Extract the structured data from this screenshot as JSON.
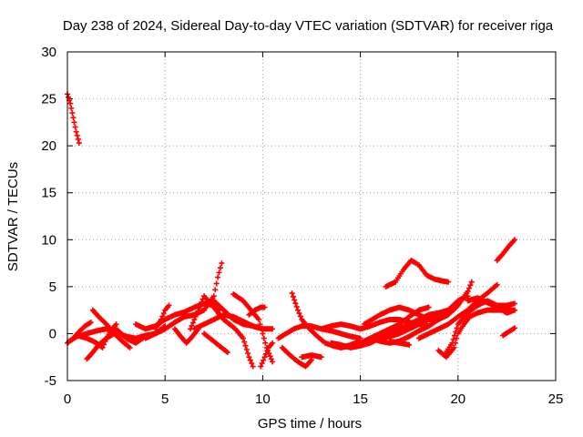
{
  "chart_data": {
    "type": "scatter",
    "title": "Day 238 of 2024, Sidereal Day-to-day VTEC variation (SDTVAR) for receiver riga",
    "xlabel": "GPS time / hours",
    "ylabel": "SDTVAR / TECUs",
    "xlim": [
      0,
      25
    ],
    "ylim": [
      -5,
      30
    ],
    "xticks": [
      0,
      5,
      10,
      15,
      20,
      25
    ],
    "yticks": [
      -5,
      0,
      5,
      10,
      15,
      20,
      25,
      30
    ],
    "grid": true,
    "marker": "+",
    "color": "#ff0000",
    "series": [
      {
        "name": "s1",
        "points": [
          [
            0.0,
            25.5
          ],
          [
            0.15,
            24.5
          ],
          [
            0.3,
            23.0
          ],
          [
            0.45,
            21.5
          ],
          [
            0.6,
            20.3
          ]
        ]
      },
      {
        "name": "s2",
        "points": [
          [
            0.0,
            -1.0
          ],
          [
            0.3,
            -0.5
          ],
          [
            0.6,
            0.2
          ],
          [
            0.9,
            0.8
          ],
          [
            1.2,
            1.2
          ]
        ]
      },
      {
        "name": "s3",
        "points": [
          [
            0.1,
            -0.8
          ],
          [
            0.5,
            -0.3
          ],
          [
            1.0,
            0.0
          ],
          [
            1.5,
            0.3
          ],
          [
            2.0,
            0.5
          ],
          [
            2.5,
            0.2
          ],
          [
            3.0,
            -0.3
          ],
          [
            3.5,
            -0.5
          ],
          [
            4.0,
            -0.2
          ],
          [
            4.5,
            0.0
          ],
          [
            5.0,
            0.5
          ]
        ]
      },
      {
        "name": "s4",
        "points": [
          [
            0.5,
            -0.2
          ],
          [
            1.0,
            -0.5
          ],
          [
            1.5,
            -1.0
          ],
          [
            1.8,
            -1.5
          ],
          [
            2.0,
            -0.5
          ],
          [
            2.3,
            0.5
          ],
          [
            2.5,
            1.0
          ]
        ]
      },
      {
        "name": "s5",
        "points": [
          [
            1.0,
            -2.7
          ],
          [
            1.3,
            -2.0
          ],
          [
            1.6,
            -1.2
          ],
          [
            2.0,
            -0.5
          ],
          [
            2.4,
            0.0
          ]
        ]
      },
      {
        "name": "s6",
        "points": [
          [
            1.3,
            2.5
          ],
          [
            1.6,
            1.8
          ],
          [
            2.0,
            1.0
          ],
          [
            2.4,
            0.0
          ],
          [
            2.8,
            -0.8
          ],
          [
            3.2,
            -1.5
          ]
        ]
      },
      {
        "name": "s7",
        "points": [
          [
            2.5,
            0.5
          ],
          [
            3.0,
            -0.5
          ],
          [
            3.5,
            -1.0
          ],
          [
            4.0,
            -0.3
          ],
          [
            4.5,
            0.0
          ],
          [
            5.0,
            0.8
          ]
        ]
      },
      {
        "name": "s8",
        "points": [
          [
            3.5,
            1.0
          ],
          [
            4.0,
            0.5
          ],
          [
            4.5,
            0.8
          ],
          [
            5.0,
            1.5
          ],
          [
            5.5,
            2.0
          ],
          [
            6.0,
            2.3
          ],
          [
            6.5,
            2.8
          ],
          [
            7.0,
            3.2
          ],
          [
            7.5,
            3.0
          ],
          [
            7.8,
            2.5
          ]
        ]
      },
      {
        "name": "s9",
        "points": [
          [
            4.5,
            0.5
          ],
          [
            4.8,
            1.5
          ],
          [
            5.0,
            2.5
          ],
          [
            5.2,
            3.0
          ]
        ]
      },
      {
        "name": "s10",
        "points": [
          [
            4.0,
            -0.5
          ],
          [
            4.5,
            0.0
          ],
          [
            5.0,
            0.5
          ],
          [
            5.5,
            1.2
          ],
          [
            6.0,
            1.8
          ],
          [
            6.5,
            2.0
          ],
          [
            7.0,
            2.5
          ],
          [
            7.5,
            4.0
          ],
          [
            7.7,
            6.0
          ],
          [
            7.9,
            7.5
          ]
        ]
      },
      {
        "name": "s11",
        "points": [
          [
            5.5,
            0.5
          ],
          [
            5.8,
            -0.3
          ],
          [
            6.1,
            -1.0
          ],
          [
            6.4,
            -0.3
          ],
          [
            6.7,
            0.5
          ]
        ]
      },
      {
        "name": "s12",
        "points": [
          [
            6.3,
            0.5
          ],
          [
            6.5,
            1.5
          ],
          [
            6.8,
            3.0
          ],
          [
            7.0,
            4.0
          ],
          [
            7.2,
            3.5
          ],
          [
            7.5,
            2.8
          ],
          [
            7.8,
            2.0
          ],
          [
            8.0,
            1.5
          ],
          [
            8.3,
            1.0
          ],
          [
            8.6,
            0.5
          ],
          [
            9.0,
            -0.5
          ],
          [
            9.3,
            -2.5
          ],
          [
            9.5,
            -3.5
          ]
        ]
      },
      {
        "name": "s13",
        "points": [
          [
            6.5,
            0.5
          ],
          [
            7.0,
            1.0
          ],
          [
            7.5,
            1.5
          ],
          [
            8.0,
            2.0
          ],
          [
            8.5,
            1.8
          ],
          [
            9.0,
            1.3
          ],
          [
            9.5,
            0.8
          ],
          [
            10.0,
            0.5
          ],
          [
            10.5,
            0.5
          ]
        ]
      },
      {
        "name": "s14",
        "points": [
          [
            7.0,
            0.0
          ],
          [
            7.3,
            -0.5
          ],
          [
            7.6,
            -1.0
          ],
          [
            7.9,
            -1.5
          ],
          [
            8.2,
            -2.0
          ]
        ]
      },
      {
        "name": "s15",
        "points": [
          [
            7.5,
            3.5
          ],
          [
            8.0,
            2.5
          ],
          [
            8.5,
            1.5
          ],
          [
            9.0,
            1.0
          ],
          [
            9.5,
            0.8
          ],
          [
            10.0,
            0.5
          ]
        ]
      },
      {
        "name": "s16",
        "points": [
          [
            8.5,
            4.2
          ],
          [
            9.0,
            3.5
          ],
          [
            9.4,
            2.5
          ],
          [
            9.8,
            1.5
          ],
          [
            10.0,
            0.0
          ],
          [
            10.2,
            -1.5
          ],
          [
            10.5,
            -3.0
          ]
        ]
      },
      {
        "name": "s17",
        "points": [
          [
            9.3,
            2.0
          ],
          [
            9.6,
            2.5
          ],
          [
            9.9,
            2.8
          ],
          [
            10.1,
            2.8
          ]
        ]
      },
      {
        "name": "s18",
        "points": [
          [
            9.9,
            -3.5
          ],
          [
            10.1,
            -2.5
          ],
          [
            10.3,
            -1.5
          ],
          [
            10.5,
            -1.0
          ]
        ]
      },
      {
        "name": "s19",
        "points": [
          [
            10.8,
            -0.5
          ],
          [
            11.2,
            0.0
          ],
          [
            11.6,
            0.5
          ],
          [
            12.0,
            0.8
          ],
          [
            12.5,
            0.8
          ],
          [
            13.0,
            0.5
          ],
          [
            13.5,
            0.3
          ],
          [
            14.0,
            0.0
          ],
          [
            14.5,
            -0.3
          ],
          [
            15.0,
            -0.5
          ]
        ]
      },
      {
        "name": "s20",
        "points": [
          [
            11.0,
            -1.5
          ],
          [
            11.4,
            -2.3
          ],
          [
            11.8,
            -3.0
          ],
          [
            12.2,
            -3.5
          ],
          [
            12.5,
            -2.8
          ]
        ]
      },
      {
        "name": "s21",
        "points": [
          [
            11.5,
            4.3
          ],
          [
            11.8,
            2.5
          ],
          [
            12.0,
            1.5
          ],
          [
            12.4,
            0.5
          ],
          [
            12.8,
            -0.3
          ],
          [
            13.2,
            -1.0
          ],
          [
            13.6,
            -1.3
          ],
          [
            14.0,
            -1.5
          ],
          [
            14.5,
            -1.2
          ],
          [
            15.0,
            -0.8
          ]
        ]
      },
      {
        "name": "s22",
        "points": [
          [
            12.0,
            -2.5
          ],
          [
            12.5,
            -2.3
          ],
          [
            13.0,
            -2.5
          ]
        ]
      },
      {
        "name": "s23",
        "points": [
          [
            13.0,
            0.5
          ],
          [
            13.5,
            0.8
          ],
          [
            14.0,
            1.0
          ],
          [
            14.5,
            0.8
          ],
          [
            15.0,
            0.5
          ],
          [
            15.5,
            0.8
          ],
          [
            16.0,
            1.2
          ],
          [
            16.5,
            1.5
          ],
          [
            17.0,
            1.5
          ],
          [
            17.5,
            1.2
          ],
          [
            18.0,
            1.0
          ],
          [
            18.5,
            0.8
          ]
        ]
      },
      {
        "name": "s24",
        "points": [
          [
            13.5,
            -1.0
          ],
          [
            14.0,
            -1.2
          ],
          [
            14.5,
            -1.5
          ],
          [
            15.0,
            -1.3
          ],
          [
            15.5,
            -1.0
          ],
          [
            16.0,
            -0.5
          ],
          [
            16.5,
            0.0
          ],
          [
            17.0,
            0.5
          ],
          [
            17.5,
            1.0
          ],
          [
            18.0,
            1.5
          ],
          [
            18.5,
            2.0
          ],
          [
            19.0,
            2.2
          ],
          [
            19.5,
            2.5
          ]
        ]
      },
      {
        "name": "s25",
        "points": [
          [
            14.0,
            -1.5
          ],
          [
            14.5,
            -1.3
          ],
          [
            15.0,
            -1.0
          ],
          [
            15.5,
            -0.5
          ],
          [
            16.0,
            0.0
          ],
          [
            16.5,
            0.5
          ],
          [
            17.0,
            1.0
          ],
          [
            17.5,
            1.8
          ],
          [
            18.0,
            2.5
          ],
          [
            18.5,
            2.8
          ]
        ]
      },
      {
        "name": "s26",
        "points": [
          [
            15.2,
            1.0
          ],
          [
            15.6,
            1.5
          ],
          [
            16.0,
            2.0
          ],
          [
            16.5,
            2.5
          ],
          [
            17.0,
            2.8
          ],
          [
            17.5,
            2.5
          ],
          [
            18.0,
            2.0
          ],
          [
            18.5,
            1.5
          ],
          [
            19.0,
            1.5
          ],
          [
            19.5,
            2.0
          ],
          [
            20.0,
            3.0
          ],
          [
            20.5,
            4.5
          ],
          [
            20.7,
            5.5
          ]
        ]
      },
      {
        "name": "s27",
        "points": [
          [
            15.5,
            -0.5
          ],
          [
            16.0,
            -0.8
          ],
          [
            16.5,
            -1.0
          ],
          [
            17.0,
            -0.8
          ],
          [
            17.5,
            -0.3
          ],
          [
            18.0,
            0.3
          ],
          [
            18.5,
            0.8
          ],
          [
            19.0,
            1.5
          ],
          [
            19.5,
            2.5
          ],
          [
            20.0,
            3.5
          ],
          [
            20.5,
            4.0
          ]
        ]
      },
      {
        "name": "s28",
        "points": [
          [
            16.0,
            -0.5
          ],
          [
            16.5,
            -0.3
          ],
          [
            17.0,
            0.0
          ],
          [
            17.5,
            0.5
          ],
          [
            18.0,
            1.0
          ],
          [
            18.5,
            1.5
          ],
          [
            19.0,
            2.0
          ]
        ]
      },
      {
        "name": "s29",
        "points": [
          [
            16.3,
            5.0
          ],
          [
            16.8,
            5.5
          ],
          [
            17.2,
            6.8
          ],
          [
            17.6,
            7.8
          ],
          [
            18.0,
            7.3
          ],
          [
            18.4,
            6.2
          ],
          [
            18.8,
            5.8
          ],
          [
            19.2,
            5.6
          ],
          [
            19.5,
            5.5
          ]
        ]
      },
      {
        "name": "s30",
        "points": [
          [
            16.5,
            -0.8
          ],
          [
            17.0,
            -1.0
          ],
          [
            17.5,
            -1.2
          ]
        ]
      },
      {
        "name": "s31",
        "points": [
          [
            18.0,
            -0.5
          ],
          [
            18.5,
            0.0
          ],
          [
            19.0,
            0.5
          ],
          [
            19.5,
            1.0
          ],
          [
            20.0,
            1.8
          ],
          [
            20.5,
            2.5
          ],
          [
            21.0,
            3.5
          ],
          [
            21.5,
            4.3
          ],
          [
            22.0,
            5.2
          ]
        ]
      },
      {
        "name": "s32",
        "points": [
          [
            19.0,
            -1.8
          ],
          [
            19.4,
            -2.5
          ],
          [
            19.8,
            -1.5
          ],
          [
            20.0,
            0.0
          ],
          [
            20.3,
            1.0
          ],
          [
            20.6,
            1.8
          ],
          [
            21.0,
            2.2
          ],
          [
            21.5,
            2.5
          ],
          [
            22.0,
            2.5
          ],
          [
            22.5,
            2.5
          ],
          [
            22.9,
            2.5
          ]
        ]
      },
      {
        "name": "s33",
        "points": [
          [
            19.3,
            -2.3
          ],
          [
            19.7,
            -1.0
          ],
          [
            20.0,
            1.0
          ],
          [
            20.5,
            2.2
          ],
          [
            21.0,
            3.0
          ],
          [
            21.5,
            3.5
          ],
          [
            22.0,
            3.0
          ],
          [
            22.5,
            3.0
          ],
          [
            22.9,
            3.2
          ]
        ]
      },
      {
        "name": "s34",
        "points": [
          [
            20.5,
            3.5
          ],
          [
            21.0,
            3.8
          ],
          [
            21.5,
            3.3
          ],
          [
            22.0,
            2.8
          ],
          [
            22.5,
            2.2
          ],
          [
            22.9,
            2.5
          ]
        ]
      },
      {
        "name": "s35",
        "points": [
          [
            22.0,
            7.8
          ],
          [
            22.3,
            8.5
          ],
          [
            22.6,
            9.3
          ],
          [
            22.9,
            10.0
          ]
        ]
      },
      {
        "name": "s36",
        "points": [
          [
            22.3,
            -0.2
          ],
          [
            22.6,
            0.2
          ],
          [
            22.9,
            0.6
          ]
        ]
      }
    ]
  }
}
